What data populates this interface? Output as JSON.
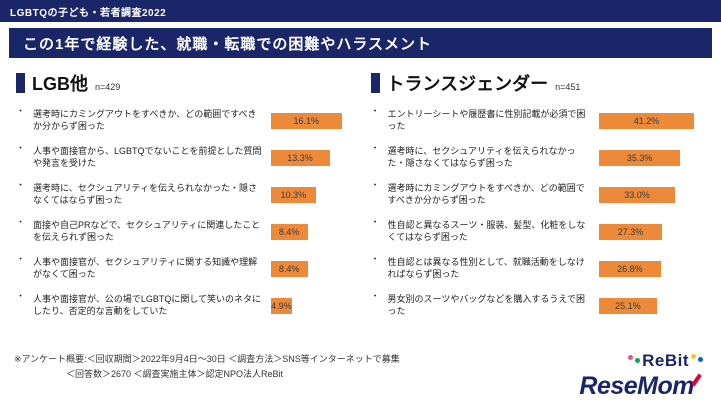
{
  "topbar": {
    "title": "LGBTQの子ども・若者調査2022"
  },
  "header": {
    "title": "この1年で経験した、就職・転職での困難やハラスメント"
  },
  "list": {
    "bullet": "・"
  },
  "colors": {
    "navy": "#1B2668",
    "bar_orange": "#ED8A3A",
    "accent_red": "#E60033",
    "rebit_dot_pink": "#E85298",
    "rebit_dot_green": "#00A95F",
    "rebit_dot_yellow": "#F5C918",
    "rebit_dot_blue": "#0068B7"
  },
  "chart_data": [
    {
      "type": "bar",
      "orientation": "horizontal",
      "title": "LGB他",
      "n_label": "n=429",
      "unit": "%",
      "xlim": [
        0,
        18
      ],
      "categories": [
        "選考時にカミングアウトをすべきか、どの範囲ですべきか分からず困った",
        "人事や面接官から、LGBTQでないことを前提とした質問や発言を受けた",
        "選考時に、セクシュアリティを伝えられなかった・隠さなくてはならず困った",
        "面接や自己PRなどで、セクシュアリティに関連したことを伝えられず困った",
        "人事や面接官が、セクシュアリティに関する知識や理解がなくて困った",
        "人事や面接官が、公の場でLGBTQに関して笑いのネタにしたり、否定的な言動をしていた"
      ],
      "values": [
        16.1,
        13.3,
        10.3,
        8.4,
        8.4,
        4.9
      ],
      "labels": [
        "16.1%",
        "13.3%",
        "10.3%",
        "8.4%",
        "8.4%",
        "4.9%"
      ]
    },
    {
      "type": "bar",
      "orientation": "horizontal",
      "title": "トランスジェンダー",
      "n_label": "n=451",
      "unit": "%",
      "xlim": [
        0,
        46
      ],
      "categories": [
        "エントリーシートや履歴書に性別記載が必須で困った",
        "選考時に、セクシュアリティを伝えられなかった・隠さなくてはならず困った",
        "選考時にカミングアウトをすべきか、どの範囲ですべきか分からず困った",
        "性自認と異なるスーツ・服装、髪型、化粧をしなくてはならず困った",
        "性自認とは異なる性別として、就職活動をしなければならず困った",
        "男女別のスーツやバッグなどを購入するうえで困った"
      ],
      "values": [
        41.2,
        35.3,
        33.0,
        27.3,
        26.8,
        25.1
      ],
      "labels": [
        "41.2%",
        "35.3%",
        "33.0%",
        "27.3%",
        "26.8%",
        "25.1%"
      ]
    }
  ],
  "footer": {
    "note_line1": "※アンケート概要:＜回収期間＞2022年9月4日〜30日 ＜調査方法＞SNS等インターネットで募集",
    "note_line2": "＜回答数＞2670 ＜調査実施主体＞認定NPO法人ReBit",
    "logos": {
      "rebit": "ReBit",
      "resemom": "ReseMom"
    }
  }
}
